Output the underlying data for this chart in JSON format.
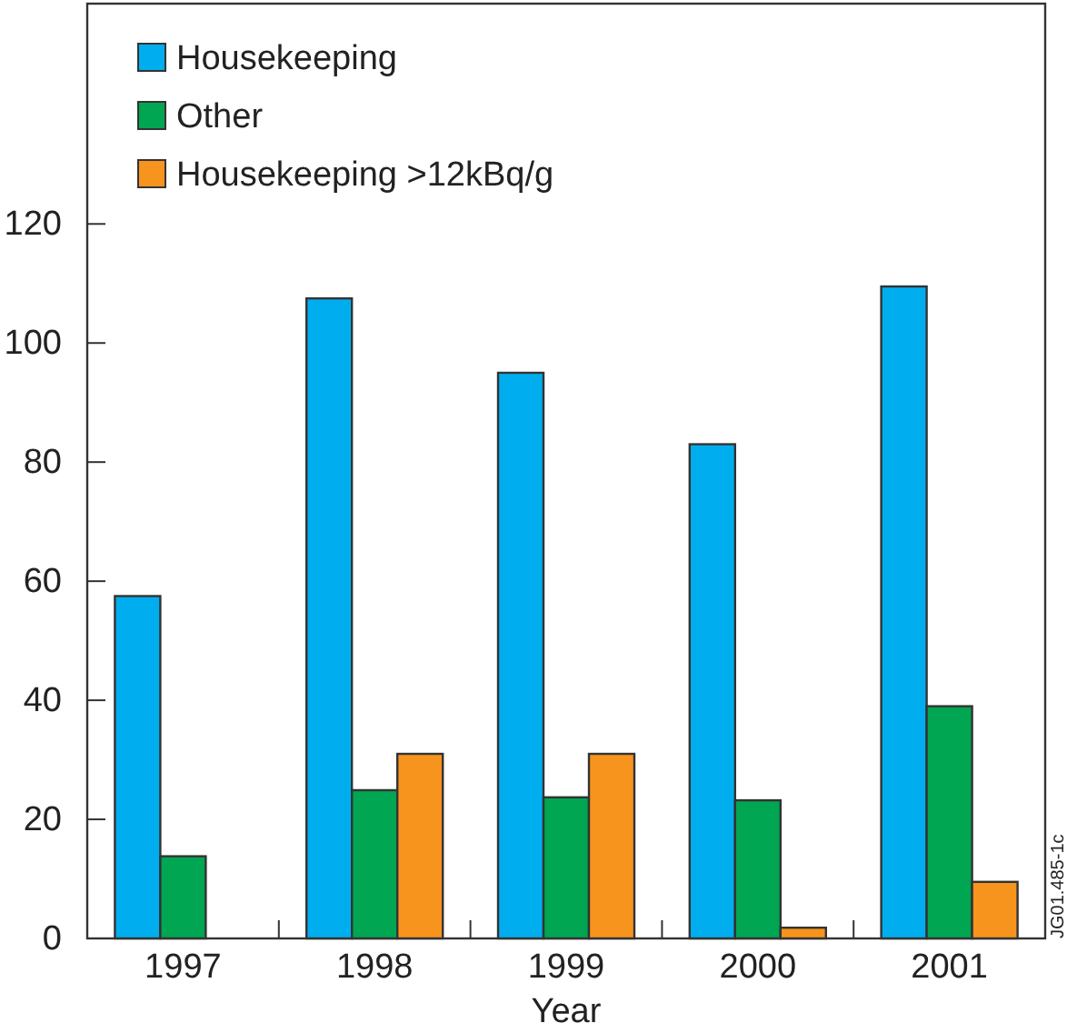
{
  "chart_data": {
    "type": "bar",
    "xlabel": "Year",
    "categories": [
      "1997",
      "1998",
      "1999",
      "2000",
      "2001"
    ],
    "series": [
      {
        "name": "Housekeeping",
        "color": "#00aeef",
        "values": [
          57.5,
          107.5,
          95,
          83,
          109.5
        ]
      },
      {
        "name": "Other",
        "color": "#00a651",
        "values": [
          13.8,
          24.9,
          23.7,
          23.2,
          39
        ]
      },
      {
        "name": "Housekeeping >12kBq/g",
        "color": "#f7941d",
        "values": [
          null,
          31,
          31,
          1.8,
          9.5
        ]
      }
    ],
    "ylim": [
      0,
      157
    ],
    "yticks": [
      0,
      20,
      40,
      60,
      80,
      100,
      120
    ],
    "grid": false,
    "legend": "top left",
    "annotations": [
      "JG01.485-1c"
    ]
  }
}
